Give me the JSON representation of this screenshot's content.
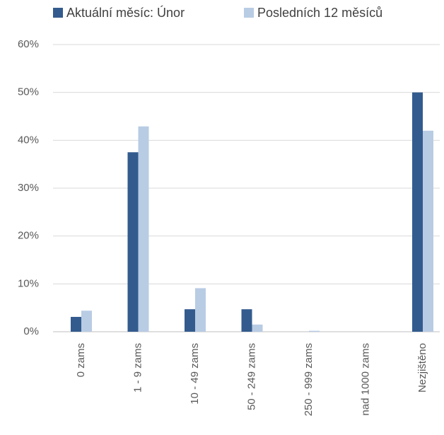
{
  "chart_data": {
    "type": "bar",
    "categories": [
      "0 zams",
      "1 - 9 zams",
      "10 - 49 zams",
      "50 - 249 zams",
      "250 - 999 zams",
      "nad 1000 zams",
      "Nezjištěno"
    ],
    "series": [
      {
        "name": "Aktuální měsíc: Únor",
        "color": "#335b8e",
        "values": [
          3.1,
          37.5,
          4.7,
          4.7,
          0,
          0,
          50
        ]
      },
      {
        "name": "Posledních 12 měsíců",
        "color": "#b8cce4",
        "values": [
          4.4,
          42.9,
          9.1,
          1.5,
          0.2,
          0,
          42
        ]
      }
    ],
    "ylim": [
      0,
      60
    ],
    "yticks": [
      {
        "value": 0,
        "label": "0%"
      },
      {
        "value": 10,
        "label": "10%"
      },
      {
        "value": 20,
        "label": "20%"
      },
      {
        "value": 30,
        "label": "30%"
      },
      {
        "value": 40,
        "label": "40%"
      },
      {
        "value": 50,
        "label": "50%"
      },
      {
        "value": 60,
        "label": "60%"
      }
    ],
    "grid": true,
    "legend": "top"
  }
}
